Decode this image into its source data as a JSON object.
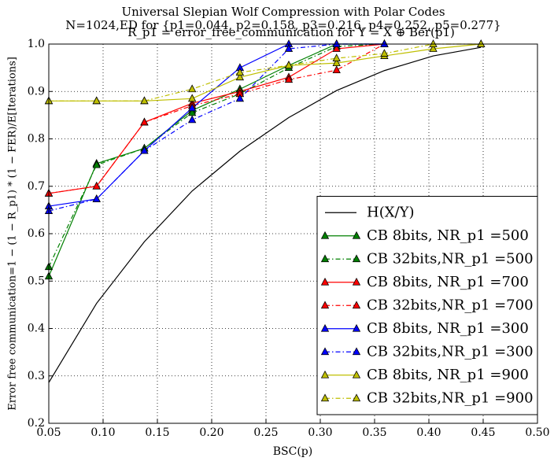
{
  "chart_data": {
    "type": "line",
    "title": "Universal Slepian Wolf Compression with Polar Codes",
    "subtitle": "N=1024,ED for {p1=0.044, p2=0.158, p3=0.216, p4=0.252, p5=0.277}",
    "subtitle2": "R_p1 = error_free_communication for Y = X ⊕ Ber(p1)",
    "xlabel": "BSC(p)",
    "ylabel": "Error free communication=1 − (1 − R_p1) * (1 − FER)/E[Iterations]",
    "x": [
      0.05,
      0.094,
      0.138,
      0.182,
      0.226,
      0.271,
      0.315,
      0.359,
      0.404,
      0.448
    ],
    "series": [
      {
        "name": "H(X/Y)",
        "color": "#000000",
        "linestyle": "solid",
        "marker": "none",
        "values": [
          0.286,
          0.453,
          0.583,
          0.69,
          0.774,
          0.845,
          0.902,
          0.944,
          0.975,
          0.993
        ]
      },
      {
        "name": "CB 8bits, NR_p1 =500",
        "color": "#008000",
        "linestyle": "solid",
        "marker": "triangle",
        "values": [
          0.51,
          0.748,
          0.78,
          0.86,
          0.905,
          0.955,
          1.0,
          1.0,
          null,
          null
        ]
      },
      {
        "name": "CB 32bits,NR_p1 =500",
        "color": "#008000",
        "linestyle": "dashdot",
        "marker": "triangle",
        "values": [
          0.53,
          0.745,
          0.78,
          0.855,
          0.895,
          0.95,
          0.995,
          1.0,
          null,
          null
        ]
      },
      {
        "name": "CB 8bits, NR_p1 =700",
        "color": "#ff0000",
        "linestyle": "solid",
        "marker": "triangle",
        "values": [
          0.685,
          0.7,
          0.835,
          0.875,
          0.9,
          0.93,
          0.99,
          1.0,
          null,
          null
        ]
      },
      {
        "name": "CB 32bits,NR_p1 =700",
        "color": "#ff0000",
        "linestyle": "dashdot",
        "marker": "triangle",
        "values": [
          0.685,
          0.7,
          0.835,
          0.87,
          0.895,
          0.925,
          0.945,
          1.0,
          null,
          null
        ]
      },
      {
        "name": "CB 8bits, NR_p1 =300",
        "color": "#0000ff",
        "linestyle": "solid",
        "marker": "triangle",
        "values": [
          0.658,
          0.673,
          0.775,
          0.865,
          0.95,
          1.0,
          1.0,
          1.0,
          null,
          null
        ]
      },
      {
        "name": "CB 32bits,NR_p1 =300",
        "color": "#0000ff",
        "linestyle": "dashdot",
        "marker": "triangle",
        "values": [
          0.648,
          0.673,
          0.775,
          0.84,
          0.885,
          0.99,
          1.0,
          1.0,
          null,
          null
        ]
      },
      {
        "name": "CB 8bits, NR_p1 =900",
        "color": "#bfbf00",
        "linestyle": "solid",
        "marker": "triangle",
        "values": [
          0.88,
          0.88,
          0.88,
          0.885,
          0.93,
          0.955,
          0.96,
          0.975,
          0.99,
          1.0
        ]
      },
      {
        "name": "CB 32bits,NR_p1 =900",
        "color": "#bfbf00",
        "linestyle": "dashdot",
        "marker": "triangle",
        "values": [
          0.88,
          0.88,
          0.88,
          0.905,
          0.94,
          0.955,
          0.97,
          0.98,
          1.0,
          1.0
        ]
      }
    ],
    "xlim": [
      0.05,
      0.5
    ],
    "ylim": [
      0.2,
      1.0
    ],
    "xticks": [
      0.05,
      {
        "value": 0.1,
        "label": "0.10"
      },
      0.15,
      {
        "value": 0.2,
        "label": "0.20"
      },
      0.25,
      {
        "value": 0.3,
        "label": "0.30"
      },
      0.35,
      {
        "value": 0.4,
        "label": "0.40"
      },
      0.45,
      {
        "value": 0.5,
        "label": "0.50"
      }
    ],
    "yticks": [
      0.2,
      0.3,
      0.4,
      0.5,
      0.6,
      0.7,
      0.8,
      0.9,
      {
        "value": 1.0,
        "label": "1.0"
      }
    ],
    "grid": true,
    "legend": "lower right"
  }
}
